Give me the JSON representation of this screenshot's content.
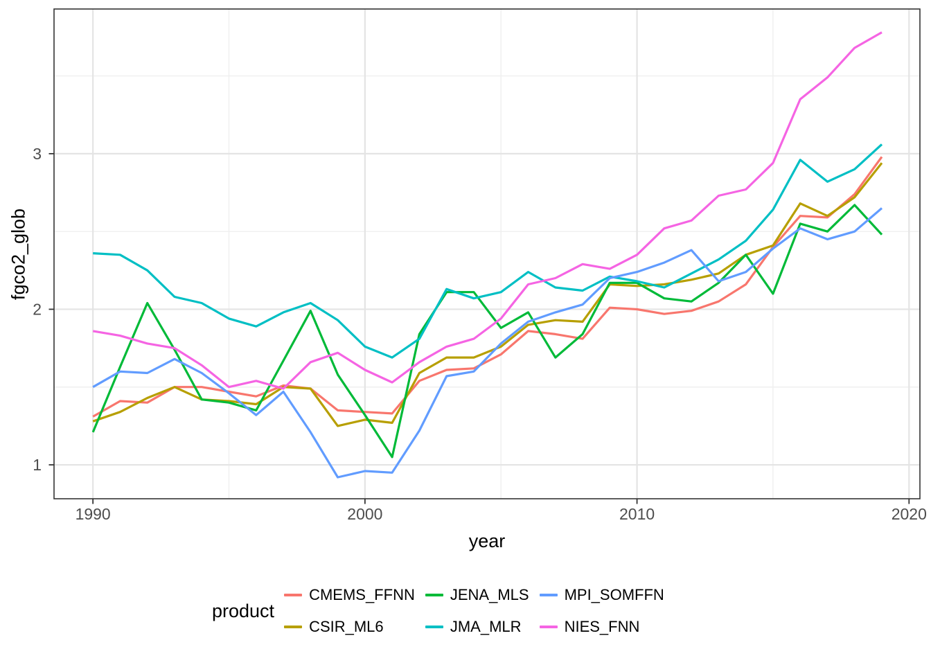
{
  "legend": {
    "title": "product"
  },
  "colors": {
    "grid_major": "#e4e4e4",
    "grid_minor": "#efefef",
    "panel_border": "#333333",
    "tick_mark": "#333333",
    "tick_label": "#4d4d4d",
    "axis_title": "#000000",
    "panel_background": "#ffffff"
  },
  "chart_data": {
    "type": "line",
    "title": "",
    "xlabel": "year",
    "ylabel": "fgco2_glob",
    "legend_title": "product",
    "legend_position": "bottom",
    "grid": true,
    "x_domain": [
      1988.57,
      2020.4
    ],
    "y_domain": [
      0.782,
      3.93
    ],
    "x_ticks": [
      1990,
      2000,
      2010,
      2020
    ],
    "y_ticks": [
      1,
      2,
      3
    ],
    "x_minor_ticks": [
      1995,
      2005,
      2015
    ],
    "y_minor_ticks": [
      1.5,
      2.5,
      3.5
    ],
    "x": [
      1990,
      1991,
      1992,
      1993,
      1994,
      1995,
      1996,
      1997,
      1998,
      1999,
      2000,
      2001,
      2002,
      2003,
      2004,
      2005,
      2006,
      2007,
      2008,
      2009,
      2010,
      2011,
      2012,
      2013,
      2014,
      2015,
      2016,
      2017,
      2018,
      2019
    ],
    "series": [
      {
        "name": "CMEMS_FFNN",
        "color": "#F8766D",
        "values": [
          1.31,
          1.41,
          1.4,
          1.5,
          1.5,
          1.47,
          1.44,
          1.51,
          1.49,
          1.35,
          1.34,
          1.33,
          1.54,
          1.61,
          1.62,
          1.71,
          1.86,
          1.84,
          1.81,
          2.01,
          2.0,
          1.97,
          1.99,
          2.05,
          2.16,
          2.4,
          2.6,
          2.59,
          2.74,
          2.98
        ]
      },
      {
        "name": "CSIR_ML6",
        "color": "#B79F00",
        "values": [
          1.28,
          1.34,
          1.43,
          1.5,
          1.42,
          1.41,
          1.39,
          1.5,
          1.49,
          1.25,
          1.29,
          1.27,
          1.59,
          1.69,
          1.69,
          1.76,
          1.9,
          1.93,
          1.92,
          2.16,
          2.15,
          2.16,
          2.19,
          2.23,
          2.35,
          2.41,
          2.68,
          2.6,
          2.72,
          2.94
        ]
      },
      {
        "name": "JENA_MLS",
        "color": "#00BA38",
        "values": [
          1.21,
          1.63,
          2.04,
          1.74,
          1.42,
          1.4,
          1.35,
          1.67,
          1.99,
          1.58,
          1.32,
          1.05,
          1.84,
          2.11,
          2.11,
          1.88,
          1.98,
          1.69,
          1.84,
          2.17,
          2.17,
          2.07,
          2.05,
          2.17,
          2.35,
          2.1,
          2.55,
          2.5,
          2.67,
          2.48
        ]
      },
      {
        "name": "JMA_MLR",
        "color": "#00BFC4",
        "values": [
          2.36,
          2.35,
          2.25,
          2.08,
          2.04,
          1.94,
          1.89,
          1.98,
          2.04,
          1.93,
          1.76,
          1.69,
          1.81,
          2.13,
          2.07,
          2.11,
          2.24,
          2.14,
          2.12,
          2.21,
          2.18,
          2.14,
          2.23,
          2.32,
          2.44,
          2.64,
          2.96,
          2.82,
          2.9,
          3.06
        ]
      },
      {
        "name": "MPI_SOMFFN",
        "color": "#619CFF",
        "values": [
          1.5,
          1.6,
          1.59,
          1.68,
          1.59,
          1.46,
          1.32,
          1.47,
          1.21,
          0.92,
          0.96,
          0.95,
          1.22,
          1.57,
          1.6,
          1.78,
          1.92,
          1.98,
          2.03,
          2.2,
          2.24,
          2.3,
          2.38,
          2.18,
          2.24,
          2.39,
          2.52,
          2.45,
          2.5,
          2.65
        ]
      },
      {
        "name": "NIES_FNN",
        "color": "#F564E3",
        "values": [
          1.86,
          1.83,
          1.78,
          1.75,
          1.64,
          1.5,
          1.54,
          1.49,
          1.66,
          1.72,
          1.61,
          1.53,
          1.66,
          1.76,
          1.81,
          1.94,
          2.16,
          2.2,
          2.29,
          2.26,
          2.35,
          2.52,
          2.57,
          2.73,
          2.77,
          2.94,
          3.35,
          3.49,
          3.68,
          3.78
        ]
      }
    ]
  }
}
